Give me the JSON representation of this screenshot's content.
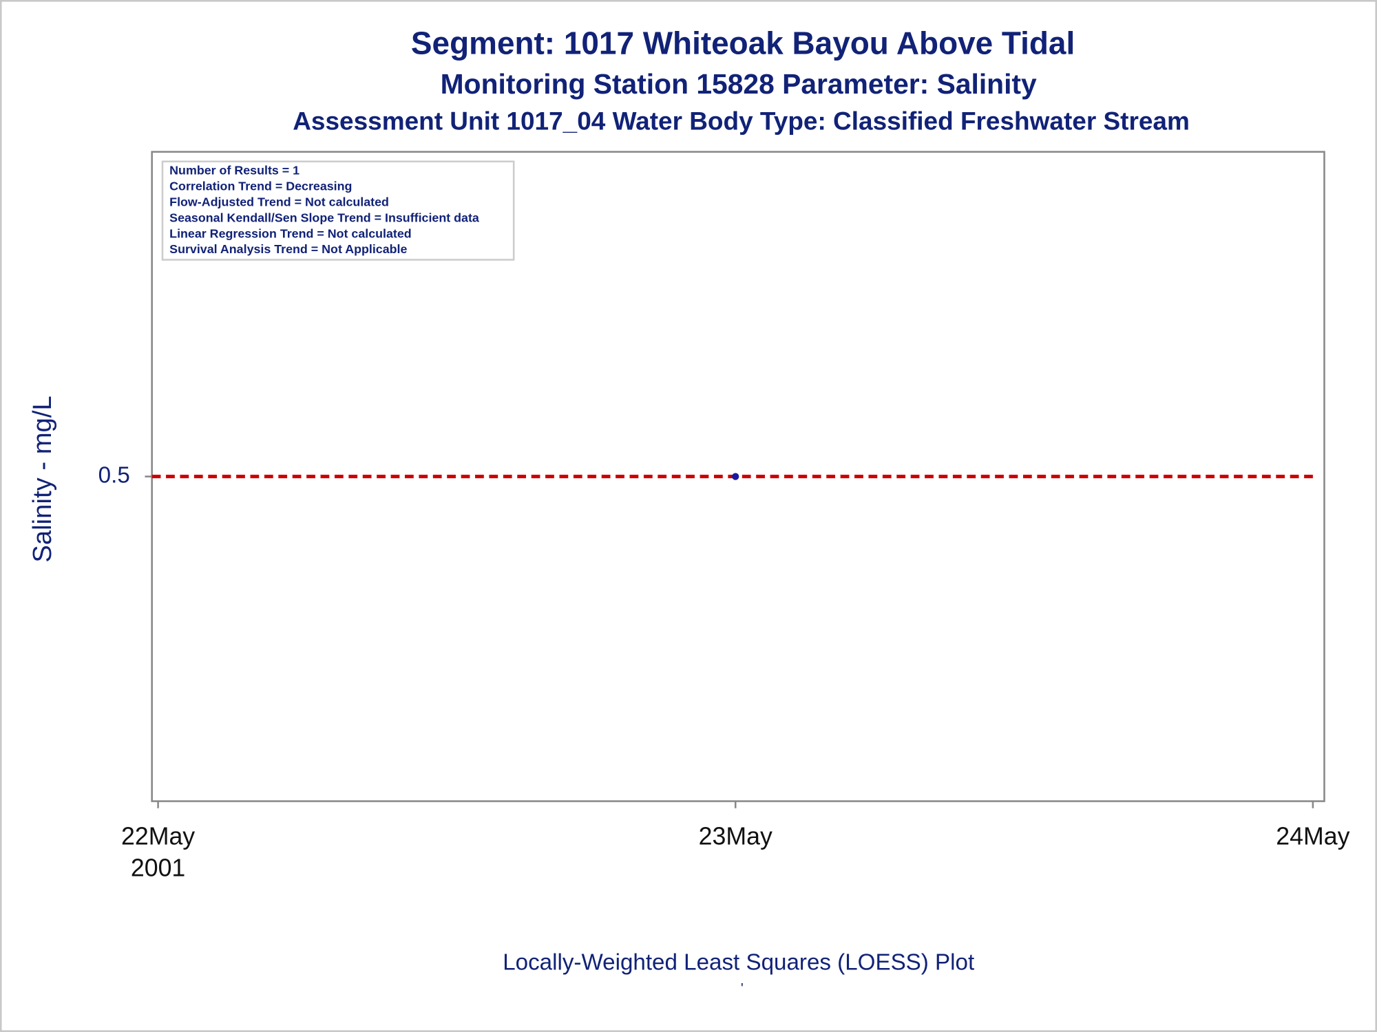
{
  "chart_data": {
    "type": "scatter",
    "title": "Segment: 1017  Whiteoak Bayou Above Tidal",
    "subtitle": "Monitoring Station 15828 Parameter: Salinity",
    "subtitle2": "Assessment Unit 1017_04   Water Body Type: Classified Freshwater Stream",
    "annotations": [
      "Number of Results = 1",
      "Correlation Trend = Decreasing",
      "Flow-Adjusted Trend = Not calculated",
      "Seasonal Kendall/Sen Slope Trend = Insufficient data",
      "Linear Regression Trend = Not calculated",
      "Survival Analysis Trend = Not Applicable"
    ],
    "x_label": "Locally-Weighted Least Squares (LOESS) Plot",
    "y_label": "Salinity - mg/L",
    "footnote": "'",
    "x": [
      "2001-05-23"
    ],
    "values": [
      0.5
    ],
    "color": "#1a1aa0",
    "reference_line": {
      "value": 0.5,
      "color": "#cc0000"
    },
    "xlim": [
      "2001-05-22",
      "2001-05-24"
    ],
    "xticks": [
      {
        "value": "2001-05-22",
        "label": [
          "22May",
          "2001"
        ]
      },
      {
        "value": "2001-05-23",
        "label": [
          "23May"
        ]
      },
      {
        "value": "2001-05-24",
        "label": [
          "24May"
        ]
      }
    ],
    "ylim": [
      0,
      1
    ],
    "yticks": [
      0.5
    ]
  }
}
